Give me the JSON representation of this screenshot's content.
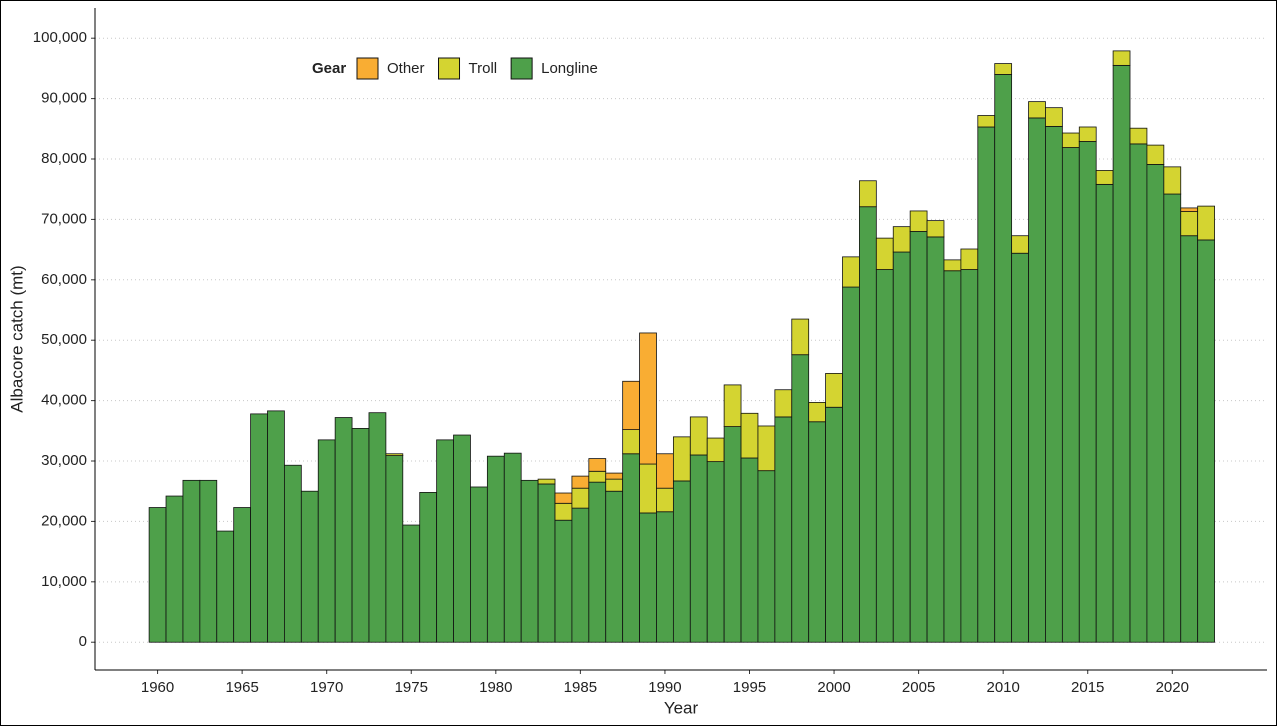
{
  "chart_data": {
    "type": "stacked_bar",
    "x_label": "Year",
    "y_label": "Albacore catch (mt)",
    "legend_title": "Gear",
    "legend_position": "top-left",
    "x": [
      1960,
      1961,
      1962,
      1963,
      1964,
      1965,
      1966,
      1967,
      1968,
      1969,
      1970,
      1971,
      1972,
      1973,
      1974,
      1975,
      1976,
      1977,
      1978,
      1979,
      1980,
      1981,
      1982,
      1983,
      1984,
      1985,
      1986,
      1987,
      1988,
      1989,
      1990,
      1991,
      1992,
      1993,
      1994,
      1995,
      1996,
      1997,
      1998,
      1999,
      2000,
      2001,
      2002,
      2003,
      2004,
      2005,
      2006,
      2007,
      2008,
      2009,
      2010,
      2011,
      2012,
      2013,
      2014,
      2015,
      2016,
      2017,
      2018,
      2019,
      2020,
      2021,
      2022
    ],
    "series": [
      {
        "name": "Other",
        "color": "#f9ad33",
        "values": [
          0,
          0,
          0,
          0,
          0,
          0,
          0,
          0,
          0,
          0,
          0,
          0,
          0,
          0,
          0,
          0,
          0,
          0,
          0,
          0,
          0,
          0,
          0,
          0,
          1700,
          2000,
          2100,
          1000,
          8000,
          21700,
          5700,
          0,
          0,
          0,
          0,
          0,
          0,
          0,
          0,
          0,
          0,
          0,
          0,
          0,
          0,
          0,
          0,
          0,
          0,
          0,
          0,
          0,
          0,
          0,
          0,
          0,
          0,
          0,
          0,
          0,
          0,
          600,
          0
        ]
      },
      {
        "name": "Troll",
        "color": "#d4d431",
        "values": [
          0,
          0,
          0,
          0,
          0,
          0,
          0,
          0,
          0,
          0,
          0,
          0,
          0,
          0,
          300,
          0,
          0,
          0,
          0,
          0,
          0,
          0,
          0,
          800,
          2800,
          3300,
          1800,
          2000,
          4000,
          8100,
          3900,
          7300,
          6300,
          3900,
          6900,
          7400,
          7400,
          4500,
          5900,
          3200,
          5600,
          5000,
          4300,
          5200,
          4200,
          3400,
          2700,
          1800,
          3400,
          1900,
          1800,
          2900,
          2700,
          3100,
          2400,
          2400,
          2300,
          2400,
          2600,
          3200,
          4500,
          4000,
          5600
        ]
      },
      {
        "name": "Longline",
        "color": "#4ea04a",
        "values": [
          22300,
          24200,
          26800,
          26800,
          18400,
          22300,
          37800,
          38300,
          29300,
          25000,
          33500,
          37200,
          35400,
          38000,
          30900,
          19400,
          24800,
          33500,
          34300,
          25700,
          30800,
          31300,
          26800,
          26200,
          20200,
          22200,
          26500,
          25000,
          31200,
          21400,
          21600,
          26700,
          31000,
          29900,
          35700,
          30500,
          28400,
          37300,
          47600,
          36500,
          38900,
          58800,
          72100,
          61700,
          64600,
          68000,
          67100,
          61500,
          61700,
          85300,
          94000,
          64400,
          86800,
          85400,
          81900,
          82900,
          75800,
          95500,
          82500,
          79100,
          74200,
          67300,
          66600
        ]
      }
    ],
    "xlim": [
      1956.3,
      2025.6
    ],
    "xticks": [
      1960,
      1965,
      1970,
      1975,
      1980,
      1985,
      1990,
      1995,
      2000,
      2005,
      2010,
      2015,
      2020
    ],
    "ylim": [
      -4600,
      105000
    ],
    "yticks": [
      0,
      {
        "value": 10000,
        "label": "10,000"
      },
      {
        "value": 20000,
        "label": "20,000"
      },
      {
        "value": 30000,
        "label": "30,000"
      },
      {
        "value": 40000,
        "label": "40,000"
      },
      {
        "value": 50000,
        "label": "50,000"
      },
      {
        "value": 60000,
        "label": "60,000"
      },
      {
        "value": 70000,
        "label": "70,000"
      },
      {
        "value": 80000,
        "label": "80,000"
      },
      {
        "value": 90000,
        "label": "90,000"
      },
      {
        "value": 100000,
        "label": "100,000"
      }
    ],
    "grid": true
  }
}
